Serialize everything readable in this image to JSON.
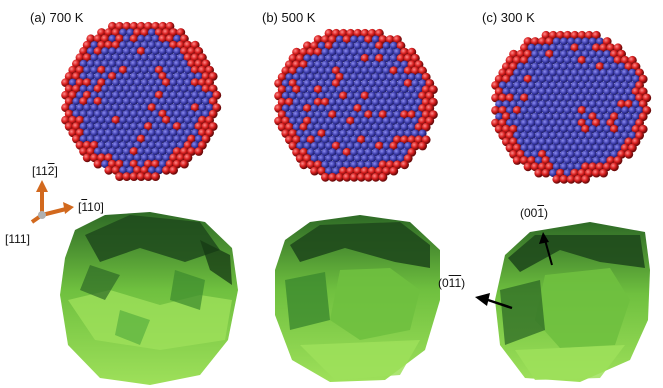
{
  "panels": [
    {
      "label": "(a) 700 K"
    },
    {
      "label": "(b) 500 K"
    },
    {
      "label": "(c) 300 K"
    }
  ],
  "axes": {
    "a112": {
      "pre": "[11",
      "bar": "2",
      "post": "]"
    },
    "a110": {
      "pre": "[",
      "bar": "1",
      "post": "10]"
    },
    "a111": "[111]"
  },
  "facets": {
    "f001": {
      "pre": "(00",
      "bar": "1",
      "post": ")"
    },
    "f011": {
      "pre": "(0",
      "bar1": "1",
      "bar2": "1",
      "post": ")"
    }
  },
  "colors": {
    "atom_red": "#d81e1e",
    "atom_blue": "#3a3aa8",
    "surface_light": "#8fd64a",
    "surface_mid": "#4fa83a",
    "surface_dark": "#1f4a1c",
    "axis_arrow": "#d2691e"
  }
}
